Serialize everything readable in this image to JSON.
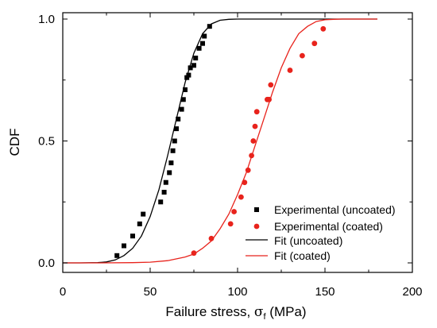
{
  "chart_data": {
    "type": "scatter",
    "xlabel_parts": [
      "Failure stress, ",
      "σ",
      "f",
      " (MPa)"
    ],
    "ylabel": "CDF",
    "xlim": [
      0,
      200
    ],
    "ylim": [
      0.0,
      1.0
    ],
    "xticks": [
      0,
      50,
      100,
      150,
      200
    ],
    "xtick_labels": [
      "0",
      "50",
      "100",
      "150",
      "200"
    ],
    "yticks": [
      0.0,
      0.5,
      1.0
    ],
    "ytick_labels": [
      "0.0",
      "0.5",
      "1.0"
    ],
    "grid": false,
    "legend_position": "lower-right",
    "series": [
      {
        "name": "Experimental (uncoated)",
        "kind": "points",
        "marker": "square",
        "color": "#000000",
        "x": [
          31,
          35,
          40,
          44,
          46,
          56,
          58,
          59,
          61,
          62,
          63,
          64,
          65,
          66,
          68,
          69,
          70,
          71,
          72,
          73,
          75,
          76,
          78,
          80,
          81,
          84
        ],
        "y": [
          0.03,
          0.07,
          0.11,
          0.16,
          0.2,
          0.25,
          0.29,
          0.33,
          0.37,
          0.41,
          0.46,
          0.5,
          0.55,
          0.59,
          0.63,
          0.67,
          0.71,
          0.76,
          0.77,
          0.8,
          0.81,
          0.84,
          0.88,
          0.9,
          0.93,
          0.97
        ]
      },
      {
        "name": "Experimental (coated)",
        "kind": "points",
        "marker": "circle",
        "color": "#e8231c",
        "x": [
          75,
          85,
          96,
          98,
          102,
          104,
          106,
          108,
          109,
          110,
          111,
          117,
          118,
          119,
          130,
          137,
          144,
          149
        ],
        "y": [
          0.04,
          0.1,
          0.16,
          0.21,
          0.27,
          0.33,
          0.38,
          0.44,
          0.5,
          0.56,
          0.62,
          0.67,
          0.67,
          0.73,
          0.79,
          0.85,
          0.9,
          0.96
        ]
      },
      {
        "name": "Fit (uncoated)",
        "kind": "curve",
        "color": "#000000",
        "x": [
          0,
          10,
          20,
          25,
          30,
          35,
          40,
          45,
          50,
          55,
          60,
          65,
          70,
          75,
          80,
          85,
          90,
          95,
          100,
          110,
          120,
          130,
          140,
          150,
          160,
          170,
          180
        ],
        "y": [
          0.0,
          0.0,
          0.001,
          0.004,
          0.012,
          0.03,
          0.06,
          0.11,
          0.19,
          0.3,
          0.44,
          0.59,
          0.74,
          0.86,
          0.94,
          0.98,
          0.995,
          0.999,
          1.0,
          1.0,
          1.0,
          1.0,
          1.0,
          1.0,
          1.0,
          1.0,
          1.0
        ]
      },
      {
        "name": "Fit (coated)",
        "kind": "curve",
        "color": "#e8231c",
        "x": [
          0,
          20,
          40,
          50,
          60,
          70,
          75,
          80,
          85,
          90,
          95,
          100,
          105,
          110,
          115,
          120,
          125,
          130,
          135,
          140,
          145,
          150,
          155,
          160,
          170,
          180
        ],
        "y": [
          0.0,
          0.0,
          0.001,
          0.003,
          0.009,
          0.024,
          0.036,
          0.06,
          0.09,
          0.14,
          0.2,
          0.28,
          0.37,
          0.48,
          0.59,
          0.7,
          0.8,
          0.88,
          0.94,
          0.97,
          0.99,
          0.997,
          0.999,
          1.0,
          1.0,
          1.0
        ]
      }
    ]
  }
}
